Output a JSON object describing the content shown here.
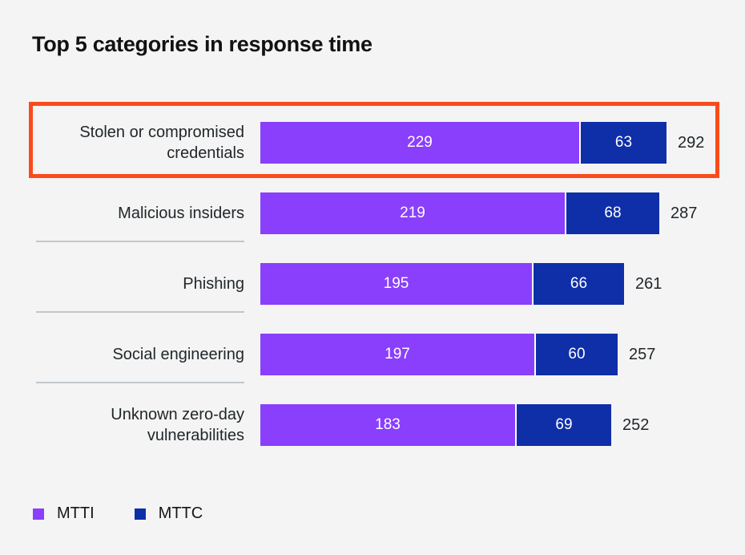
{
  "colors": {
    "background": "#f4f4f4",
    "mtti": "#8a3ffc",
    "mttc": "#0e2fa8",
    "highlight_border": "#fb4b1c",
    "divider": "#c1c7cd",
    "text": "#21272a",
    "bar_value_text": "#ffffff"
  },
  "chart_data": {
    "type": "bar",
    "orientation": "horizontal",
    "stacked": true,
    "title": "Top 5 categories in response time",
    "categories": [
      "Stolen or compromised credentials",
      "Malicious insiders",
      "Phishing",
      "Social engineering",
      "Unknown zero-day vulnerabilities"
    ],
    "series": [
      {
        "name": "MTTI",
        "values": [
          229,
          219,
          195,
          197,
          183
        ],
        "color": "#8a3ffc"
      },
      {
        "name": "MTTC",
        "values": [
          63,
          68,
          66,
          60,
          69
        ],
        "color": "#0e2fa8"
      }
    ],
    "totals": [
      292,
      287,
      261,
      257,
      252
    ],
    "xlim": [
      0,
      292
    ],
    "highlighted_category_index": 0,
    "value_labels": "inside-segments",
    "total_labels": "right-of-bar",
    "legend_position": "bottom-left",
    "grid": false
  }
}
